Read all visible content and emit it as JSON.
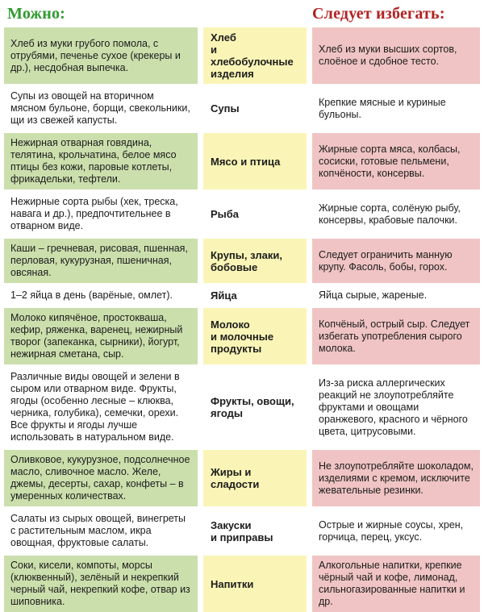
{
  "header": {
    "allowed_label": "Можно:",
    "avoid_label": "Следует избегать:"
  },
  "colors": {
    "allowed_cell_bg": "#cbdfac",
    "category_cell_bg": "#faf5b6",
    "avoid_cell_bg": "#f0c4c4",
    "allowed_header_text": "#2f9a2f",
    "avoid_header_text": "#b22222",
    "body_text": "#1c1c1c"
  },
  "rows": [
    {
      "category": "Хлеб\nи хлебобулочные\nизделия",
      "allowed": "Хлеб из муки грубого помола, с отрубями, печенье сухое (крекеры и др.), несдобная выпечка.",
      "avoid": "Хлеб из муки высших сортов, слоёное и сдобное тесто."
    },
    {
      "category": "Супы",
      "allowed": "Супы из овощей на вторичном мясном бульоне, борщи, свекольники, щи из свежей капусты.",
      "avoid": "Крепкие мясные и куриные бульоны."
    },
    {
      "category": "Мясо и птица",
      "allowed": "Нежирная отварная говядина, телятина, крольчатина, белое мясо птицы без кожи, паровые котлеты, фрикадельки, тефтели.",
      "avoid": "Жирные сорта мяса, колбасы, сосиски, готовые пельмени, копчёности, консервы."
    },
    {
      "category": "Рыба",
      "allowed": "Нежирные сорта рыбы (хек, треска, навага и др.), предпочтительнее в отварном виде.",
      "avoid": "Жирные сорта, солёную рыбу, консервы, крабовые палочки."
    },
    {
      "category": "Крупы, злаки,\nбобовые",
      "allowed": "Каши – гречневая, рисовая, пшенная, перловая, кукурузная, пшеничная, овсяная.",
      "avoid": "Следует ограничить манную крупу. Фасоль, бобы, горох."
    },
    {
      "category": "Яйца",
      "allowed": "1–2 яйца в день (варёные, омлет).",
      "avoid": "Яйца сырые, жареные."
    },
    {
      "category": "Молоко\nи молочные\nпродукты",
      "allowed": "Молоко кипячёное, простокваша, кефир, ряженка, варенец, нежирный творог (запеканка, сырники), йогурт, нежирная сметана, сыр.",
      "avoid": "Копчёный, острый сыр. Следует избегать употребления сырого молока."
    },
    {
      "category": "Фрукты, овощи,\nягоды",
      "allowed": "Различные виды овощей и зелени в сыром или отварном виде. Фрукты, ягоды (особенно лесные – клюква, черника, голубика), семечки, орехи. Все фрукты и ягоды лучше использовать в натуральном виде.",
      "avoid": "Из-за риска аллергических реакций не злоупотребляйте фруктами и овощами оранжевого, красного и чёрного цвета, цитрусовыми."
    },
    {
      "category": "Жиры и сладости",
      "allowed": "Оливковое, кукурузное, подсолнечное масло, сливочное масло. Желе, джемы, десерты, сахар, конфеты – в умеренных количествах.",
      "avoid": "Не злоупотребляйте шоколадом, изделиями с кремом, исключите жевательные резинки."
    },
    {
      "category": "Закуски\nи приправы",
      "allowed": "Салаты из сырых овощей, винегреты с растительным маслом, икра овощная, фруктовые салаты.",
      "avoid": "Острые и жирные соусы, хрен, горчица, перец, уксус."
    },
    {
      "category": "Напитки",
      "allowed": "Соки, кисели, компоты, морсы (клюквенный), зелёный и некрепкий черный чай, некрепкий кофе, отвар из шиповника.",
      "avoid": "Алкогольные напитки, крепкие чёрный чай и кофе, лимонад, сильногазированные напитки и др."
    }
  ]
}
